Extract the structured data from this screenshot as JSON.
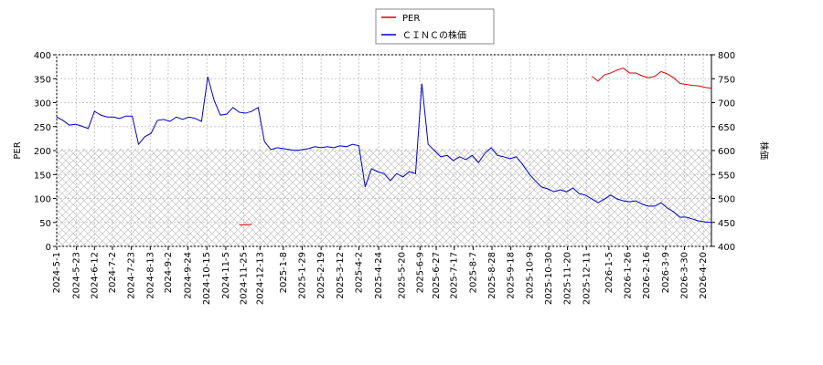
{
  "chart_data": {
    "type": "line",
    "ylabel": "PER",
    "y2label": "株価",
    "ylim": [
      0,
      400
    ],
    "yticks": [
      0,
      50,
      100,
      150,
      200,
      250,
      300,
      350,
      400
    ],
    "y2lim": [
      400,
      800
    ],
    "y2ticks": [
      400,
      450,
      500,
      550,
      600,
      650,
      700,
      750,
      800
    ],
    "xlim": [
      "2024-5-1",
      "2026-4-29"
    ],
    "xticks": [
      "2024-5-1",
      "2024-5-23",
      "2024-6-12",
      "2024-7-2",
      "2024-7-23",
      "2024-8-13",
      "2024-9-2",
      "2024-9-24",
      "2024-10-15",
      "2024-11-5",
      "2024-11-25",
      "2024-12-13",
      "2025-1-8",
      "2025-1-29",
      "2025-2-19",
      "2025-3-12",
      "2025-4-2",
      "2025-4-24",
      "2025-5-20",
      "2025-6-9",
      "2025-6-27",
      "2025-7-17",
      "2025-8-7",
      "2025-8-28",
      "2025-9-18",
      "2025-10-9",
      "2025-10-30",
      "2025-11-20",
      "2025-12-11",
      "2026-1-5",
      "2026-1-26",
      "2026-2-16",
      "2026-3-9",
      "2026-3-30",
      "2026-4-20"
    ],
    "grid": true,
    "legend": "top",
    "x": [
      "2024-5-1",
      "2024-5-8",
      "2024-5-15",
      "2024-5-22",
      "2024-5-29",
      "2024-6-5",
      "2024-6-12",
      "2024-6-19",
      "2024-6-26",
      "2024-7-3",
      "2024-7-10",
      "2024-7-17",
      "2024-7-24",
      "2024-7-31",
      "2024-8-7",
      "2024-8-14",
      "2024-8-21",
      "2024-8-28",
      "2024-9-4",
      "2024-9-11",
      "2024-9-18",
      "2024-9-25",
      "2024-10-2",
      "2024-10-9",
      "2024-10-16",
      "2024-10-23",
      "2024-10-30",
      "2024-11-6",
      "2024-11-13",
      "2024-11-20",
      "2024-11-27",
      "2024-12-4",
      "2024-12-11",
      "2024-12-18",
      "2024-12-25",
      "2025-1-1",
      "2025-1-8",
      "2025-1-15",
      "2025-1-22",
      "2025-1-29",
      "2025-2-5",
      "2025-2-12",
      "2025-2-19",
      "2025-2-26",
      "2025-3-5",
      "2025-3-12",
      "2025-3-19",
      "2025-3-26",
      "2025-4-2",
      "2025-4-9",
      "2025-4-16",
      "2025-4-23",
      "2025-4-30",
      "2025-5-7",
      "2025-5-14",
      "2025-5-21",
      "2025-5-28",
      "2025-6-4",
      "2025-6-11",
      "2025-6-18",
      "2025-6-25",
      "2025-7-2",
      "2025-7-9",
      "2025-7-16",
      "2025-7-23",
      "2025-7-30",
      "2025-8-6",
      "2025-8-13",
      "2025-8-20",
      "2025-8-27",
      "2025-9-3",
      "2025-9-10",
      "2025-9-17",
      "2025-9-24",
      "2025-10-1",
      "2025-10-8",
      "2025-10-15",
      "2025-10-22",
      "2025-10-29",
      "2025-11-5",
      "2025-11-12",
      "2025-11-19",
      "2025-11-26",
      "2025-12-3",
      "2025-12-10",
      "2025-12-17",
      "2025-12-24",
      "2025-12-31",
      "2026-1-7",
      "2026-1-14",
      "2026-1-21",
      "2026-1-28",
      "2026-2-4",
      "2026-2-11",
      "2026-2-18",
      "2026-2-25",
      "2026-3-4",
      "2026-3-11",
      "2026-3-18",
      "2026-3-25",
      "2026-4-1",
      "2026-4-8",
      "2026-4-15",
      "2026-4-22",
      "2026-4-29"
    ],
    "series": [
      {
        "name": "PER",
        "color": "#dd0000",
        "axis": "y",
        "values": [
          null,
          null,
          null,
          null,
          null,
          null,
          null,
          null,
          null,
          null,
          null,
          null,
          null,
          null,
          null,
          null,
          null,
          null,
          null,
          null,
          null,
          null,
          null,
          null,
          null,
          null,
          null,
          null,
          null,
          45,
          45,
          46,
          null,
          null,
          null,
          null,
          null,
          null,
          null,
          null,
          null,
          null,
          null,
          null,
          null,
          null,
          null,
          null,
          null,
          null,
          null,
          null,
          null,
          null,
          null,
          null,
          null,
          null,
          null,
          null,
          null,
          null,
          null,
          null,
          null,
          null,
          null,
          null,
          null,
          null,
          null,
          null,
          null,
          null,
          null,
          null,
          null,
          null,
          null,
          null,
          null,
          null,
          null,
          null,
          null,
          355,
          345,
          358,
          362,
          368,
          372,
          362,
          362,
          356,
          352,
          355,
          365,
          360,
          352,
          340,
          338,
          336,
          335,
          332,
          330
        ]
      },
      {
        "name": "ＣＩＮＣの株価",
        "color": "#0000cc",
        "axis": "y2",
        "values": [
          670,
          663,
          653,
          655,
          651,
          646,
          682,
          674,
          670,
          670,
          667,
          672,
          672,
          613,
          629,
          636,
          663,
          665,
          661,
          670,
          665,
          670,
          667,
          661,
          754,
          705,
          674,
          676,
          690,
          680,
          678,
          682,
          690,
          619,
          602,
          606,
          604,
          602,
          600,
          602,
          604,
          608,
          606,
          608,
          606,
          610,
          608,
          613,
          610,
          524,
          562,
          556,
          552,
          537,
          552,
          545,
          556,
          552,
          740,
          613,
          600,
          587,
          590,
          579,
          587,
          581,
          590,
          575,
          594,
          606,
          590,
          587,
          583,
          587,
          571,
          552,
          537,
          524,
          520,
          514,
          518,
          514,
          522,
          510,
          507,
          499,
          491,
          499,
          507,
          499,
          495,
          493,
          495,
          488,
          484,
          484,
          491,
          480,
          472,
          461,
          461,
          457,
          453,
          451,
          450
        ]
      }
    ]
  }
}
